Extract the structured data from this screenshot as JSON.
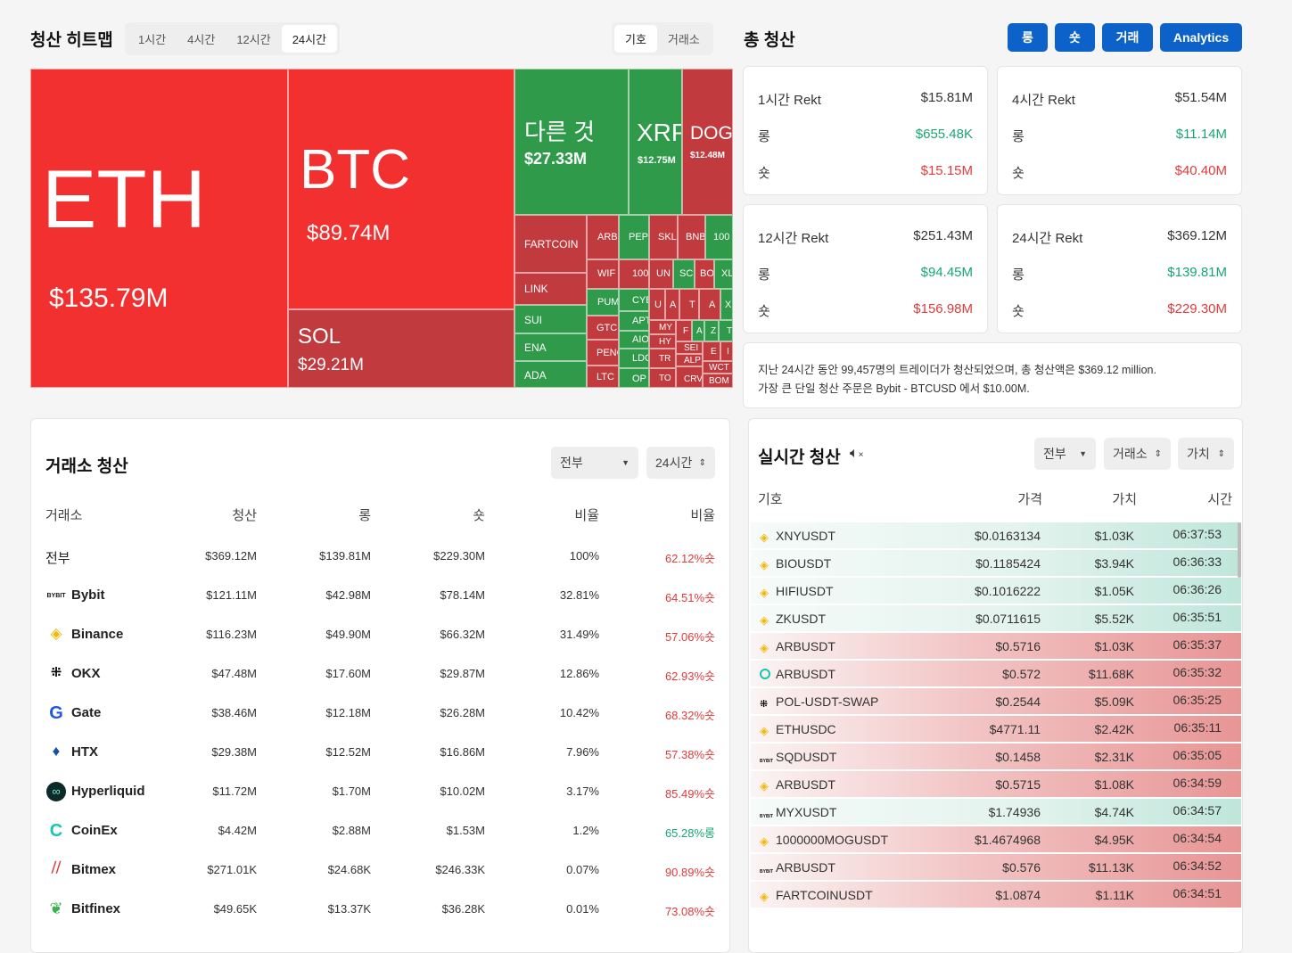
{
  "heatmap": {
    "title": "청산 히트맵",
    "time_tabs": [
      "1시간",
      "4시간",
      "12시간",
      "24시간"
    ],
    "active_tab": "24시간",
    "view_tabs": [
      "기호",
      "거래소"
    ],
    "active_view": "기호",
    "tiles": {
      "eth": {
        "name": "ETH",
        "value": "$135.79M"
      },
      "btc": {
        "name": "BTC",
        "value": "$89.74M"
      },
      "sol": {
        "name": "SOL",
        "value": "$29.21M"
      },
      "other": {
        "name": "다른 것",
        "value": "$27.33M"
      },
      "xrp": {
        "name": "XRP",
        "value": "$12.75M"
      },
      "doge": {
        "name": "DOGE",
        "value": "$12.48M"
      },
      "fartcoin": "FARTCOIN",
      "link": "LINK",
      "sui": "SUI",
      "ena": "ENA",
      "ada": "ADA",
      "arb": "ARB",
      "pepe": "PEPE",
      "skl": "SKL",
      "bnb": "BNB",
      "t100": "100",
      "wif": "WIF",
      "t100b": "100",
      "un": "UN",
      "sc": "SC",
      "bo": "BO",
      "xl": "XL",
      "pump": "PUMP",
      "cyb": "CYB",
      "u": "U",
      "a": "A",
      "t": "T",
      "a2": "A",
      "x": "X",
      "gtc": "GTC",
      "apt": "APT",
      "my": "MY",
      "f": "F",
      "a3": "A",
      "z": "Z",
      "t2": "T",
      "peng": "PENG",
      "aio": "AIO",
      "hy": "HY",
      "sei": "SEI",
      "e": "E",
      "i": "I",
      "ldo": "LDO",
      "tr": "TR",
      "alp": "ALP",
      "ltc": "LTC",
      "op": "OP",
      "to": "TO",
      "crv": "CRV",
      "wct": "WCT",
      "bom": "BOM"
    }
  },
  "total": {
    "title": "총 청산",
    "buttons": [
      "롱",
      "숏",
      "거래",
      "Analytics"
    ],
    "cards": [
      {
        "label": "1시간 Rekt",
        "total": "$15.81M",
        "long_label": "롱",
        "long": "$655.48K",
        "short_label": "숏",
        "short": "$15.15M"
      },
      {
        "label": "4시간 Rekt",
        "total": "$51.54M",
        "long_label": "롱",
        "long": "$11.14M",
        "short_label": "숏",
        "short": "$40.40M"
      },
      {
        "label": "12시간 Rekt",
        "total": "$251.43M",
        "long_label": "롱",
        "long": "$94.45M",
        "short_label": "숏",
        "short": "$156.98M"
      },
      {
        "label": "24시간 Rekt",
        "total": "$369.12M",
        "long_label": "롱",
        "long": "$139.81M",
        "short_label": "숏",
        "short": "$229.30M"
      }
    ],
    "summary_line1": "지난 24시간 동안 99,457명의 트레이더가 청산되었으며, 총 청산액은 $369.12 million.",
    "summary_line2": "가장 큰 단일 청산 주문은 Bybit - BTCUSD 에서 $10.00M."
  },
  "exchange": {
    "title": "거래소 청산",
    "filter": "전부",
    "period": "24시간",
    "headers": [
      "거래소",
      "청산",
      "롱",
      "숏",
      "비율",
      "비율"
    ],
    "rows": [
      {
        "name": "전부",
        "total": "$369.12M",
        "long": "$139.81M",
        "short": "$229.30M",
        "share": "100%",
        "ratio": "62.12%숏",
        "ratio_color": "#e23b3b"
      },
      {
        "name": "Bybit",
        "total": "$121.11M",
        "long": "$42.98M",
        "short": "$78.14M",
        "share": "32.81%",
        "ratio": "64.51%숏",
        "ratio_color": "#e23b3b"
      },
      {
        "name": "Binance",
        "total": "$116.23M",
        "long": "$49.90M",
        "short": "$66.32M",
        "share": "31.49%",
        "ratio": "57.06%숏",
        "ratio_color": "#e23b3b"
      },
      {
        "name": "OKX",
        "total": "$47.48M",
        "long": "$17.60M",
        "short": "$29.87M",
        "share": "12.86%",
        "ratio": "62.93%숏",
        "ratio_color": "#e23b3b"
      },
      {
        "name": "Gate",
        "total": "$38.46M",
        "long": "$12.18M",
        "short": "$26.28M",
        "share": "10.42%",
        "ratio": "68.32%숏",
        "ratio_color": "#e23b3b"
      },
      {
        "name": "HTX",
        "total": "$29.38M",
        "long": "$12.52M",
        "short": "$16.86M",
        "share": "7.96%",
        "ratio": "57.38%숏",
        "ratio_color": "#e23b3b"
      },
      {
        "name": "Hyperliquid",
        "total": "$11.72M",
        "long": "$1.70M",
        "short": "$10.02M",
        "share": "3.17%",
        "ratio": "85.49%숏",
        "ratio_color": "#e23b3b"
      },
      {
        "name": "CoinEx",
        "total": "$4.42M",
        "long": "$2.88M",
        "short": "$1.53M",
        "share": "1.2%",
        "ratio": "65.28%롱",
        "ratio_color": "#18a672"
      },
      {
        "name": "Bitmex",
        "total": "$271.01K",
        "long": "$24.68K",
        "short": "$246.33K",
        "share": "0.07%",
        "ratio": "90.89%숏",
        "ratio_color": "#e23b3b"
      },
      {
        "name": "Bitfinex",
        "total": "$49.65K",
        "long": "$13.37K",
        "short": "$36.28K",
        "share": "0.01%",
        "ratio": "73.08%숏",
        "ratio_color": "#e23b3b"
      }
    ]
  },
  "live": {
    "title": "실시간 청산",
    "filter": "전부",
    "exchange": "거래소",
    "value": "가치",
    "headers": [
      "기호",
      "가격",
      "가치",
      "시간"
    ],
    "rows": [
      {
        "symbol": "XNYUSDT",
        "price": "$0.0163134",
        "value": "$1.03K",
        "time": "06:37:53",
        "side": "long",
        "ex": "binance"
      },
      {
        "symbol": "BIOUSDT",
        "price": "$0.1185424",
        "value": "$3.94K",
        "time": "06:36:33",
        "side": "long",
        "ex": "binance"
      },
      {
        "symbol": "HIFIUSDT",
        "price": "$0.1016222",
        "value": "$1.05K",
        "time": "06:36:26",
        "side": "long",
        "ex": "binance"
      },
      {
        "symbol": "ZKUSDT",
        "price": "$0.0711615",
        "value": "$5.52K",
        "time": "06:35:51",
        "side": "long",
        "ex": "binance"
      },
      {
        "symbol": "ARBUSDT",
        "price": "$0.5716",
        "value": "$1.03K",
        "time": "06:35:37",
        "side": "short",
        "ex": "binance"
      },
      {
        "symbol": "ARBUSDT",
        "price": "$0.572",
        "value": "$11.68K",
        "time": "06:35:32",
        "side": "short",
        "ex": "coinex"
      },
      {
        "symbol": "POL-USDT-SWAP",
        "price": "$0.2544",
        "value": "$5.09K",
        "time": "06:35:25",
        "side": "short",
        "ex": "okx"
      },
      {
        "symbol": "ETHUSDC",
        "price": "$4771.11",
        "value": "$2.42K",
        "time": "06:35:11",
        "side": "short",
        "ex": "binance"
      },
      {
        "symbol": "SQDUSDT",
        "price": "$0.1458",
        "value": "$2.31K",
        "time": "06:35:05",
        "side": "short",
        "ex": "bybit"
      },
      {
        "symbol": "ARBUSDT",
        "price": "$0.5715",
        "value": "$1.08K",
        "time": "06:34:59",
        "side": "short",
        "ex": "binance"
      },
      {
        "symbol": "MYXUSDT",
        "price": "$1.74936",
        "value": "$4.74K",
        "time": "06:34:57",
        "side": "long",
        "ex": "bybit"
      },
      {
        "symbol": "1000000MOGUSDT",
        "price": "$1.4674968",
        "value": "$4.95K",
        "time": "06:34:54",
        "side": "short",
        "ex": "binance"
      },
      {
        "symbol": "ARBUSDT",
        "price": "$0.576",
        "value": "$11.13K",
        "time": "06:34:52",
        "side": "short",
        "ex": "bybit"
      },
      {
        "symbol": "FARTCOINUSDT",
        "price": "$1.0874",
        "value": "$1.11K",
        "time": "06:34:51",
        "side": "short",
        "ex": "binance"
      }
    ]
  }
}
